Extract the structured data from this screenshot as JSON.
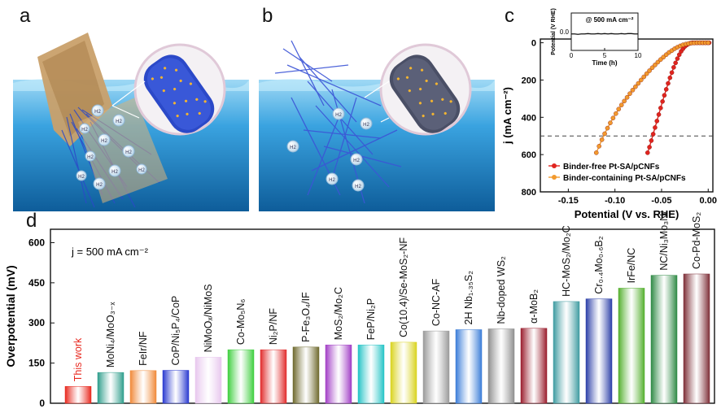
{
  "panels": {
    "a": "a",
    "b": "b",
    "c": "c",
    "d": "d"
  },
  "illustration": {
    "bubble_label": "H2"
  },
  "colors": {
    "water_top": "#7ec9ee",
    "water_bottom": "#0f6aa8",
    "fiber_blue": "#2b49c8",
    "pt_dot": "#f2b431",
    "binder_free": "#e0241f",
    "binder_containing": "#f29a2e"
  },
  "chart_data": [
    {
      "type": "line",
      "panel": "c",
      "xlabel": "Potential (V vs. RHE)",
      "ylabel": "j (mA cm⁻²)",
      "xlim": [
        -0.18,
        0.005
      ],
      "ylim": [
        800,
        -20
      ],
      "y_inverted": true,
      "xticks": [
        "-0.15",
        "-0.10",
        "-0.05",
        "0.00"
      ],
      "yticks": [
        "0",
        "200",
        "400",
        "600",
        "800"
      ],
      "reference_line": 500,
      "legend_position": "bottom-left",
      "series": [
        {
          "name": "Binder-free Pt-SA/pCNFs",
          "color": "#e0241f",
          "x": [
            -0.065,
            -0.063,
            -0.061,
            -0.059,
            -0.057,
            -0.055,
            -0.053,
            -0.051,
            -0.049,
            -0.047,
            -0.045,
            -0.043,
            -0.041,
            -0.039,
            -0.037,
            -0.035,
            -0.033,
            -0.031,
            -0.029,
            -0.027,
            -0.025,
            -0.023,
            -0.021,
            -0.019,
            -0.017,
            -0.015,
            -0.013,
            -0.011,
            -0.009,
            -0.007,
            -0.005,
            -0.003,
            -0.001,
            0.001
          ],
          "y": [
            590,
            560,
            525,
            490,
            455,
            420,
            385,
            350,
            315,
            282,
            250,
            218,
            188,
            160,
            132,
            108,
            85,
            64,
            46,
            32,
            20,
            12,
            6,
            2,
            0,
            0,
            0,
            0,
            0,
            0,
            0,
            0,
            0,
            0
          ]
        },
        {
          "name": "Binder-containing Pt-SA/pCNFs",
          "color": "#f29a2e",
          "x": [
            -0.12,
            -0.117,
            -0.114,
            -0.111,
            -0.108,
            -0.105,
            -0.102,
            -0.099,
            -0.096,
            -0.093,
            -0.09,
            -0.087,
            -0.084,
            -0.081,
            -0.078,
            -0.075,
            -0.072,
            -0.069,
            -0.066,
            -0.063,
            -0.06,
            -0.057,
            -0.054,
            -0.051,
            -0.048,
            -0.045,
            -0.042,
            -0.039,
            -0.036,
            -0.033,
            -0.03,
            -0.027,
            -0.024,
            -0.021,
            -0.018,
            -0.015,
            -0.012,
            -0.009,
            -0.006,
            -0.003,
            0.0
          ],
          "y": [
            590,
            555,
            520,
            488,
            458,
            430,
            404,
            380,
            356,
            334,
            313,
            293,
            273,
            254,
            236,
            218,
            200,
            183,
            166,
            150,
            134,
            119,
            104,
            90,
            77,
            64,
            52,
            42,
            32,
            24,
            17,
            11,
            7,
            4,
            2,
            1,
            0,
            0,
            0,
            0,
            0
          ]
        }
      ],
      "inset": {
        "type": "line",
        "xlabel": "Time (h)",
        "ylabel": "Potential (V RHE)",
        "annotation": "@ 500 mA cm⁻²",
        "xlim": [
          0,
          10
        ],
        "ylim": [
          -0.5,
          0.5
        ],
        "xticks": [
          "0",
          "5",
          "10"
        ],
        "yticks": [
          "0.0"
        ],
        "x": [
          0,
          0.5,
          1,
          1.5,
          2,
          2.5,
          3,
          3.5,
          4,
          4.5,
          5,
          5.5,
          6,
          6.5,
          7,
          7.5,
          8,
          8.5,
          9,
          9.5,
          10
        ],
        "y": [
          -0.06,
          -0.06,
          -0.07,
          -0.06,
          -0.06,
          -0.05,
          -0.06,
          -0.06,
          -0.05,
          -0.06,
          -0.05,
          -0.06,
          -0.05,
          -0.06,
          -0.06,
          -0.05,
          -0.06,
          -0.05,
          -0.05,
          -0.06,
          -0.06
        ]
      }
    },
    {
      "type": "bar",
      "panel": "d",
      "ylabel": "Overpotential (mV)",
      "annotation": "j = 500 mA cm⁻²",
      "ylim": [
        0,
        650
      ],
      "yticks": [
        "0",
        "150",
        "300",
        "450",
        "600"
      ],
      "categories": [
        "This work",
        "MoNi₄/MoO₃₋ₓ",
        "FeIr/NF",
        "CoP/Ni₅P₄/CoP",
        "NiMoOₓ/NiMoS",
        "Co-Mo₅N₆",
        "Ni₂P/NF",
        "P-Fe₃O₄/IF",
        "MoS₂/Mo₂C",
        "FeP/Ni₂P",
        "Co(10.4)/Se-MoS₂-NF",
        "Co-NC-AF",
        "2H Nb₁.₃₅S₂",
        "Nb-doped WS₂",
        "α-MoB₂",
        "HC-MoS₂/Mo₂C",
        "Cr₀.₄Mo₀.₆B₂",
        "IrFe/NC",
        "NC/Ni₃Mo₃N/NF",
        "Co-Pd-MoS₂"
      ],
      "values": [
        63,
        115,
        122,
        123,
        172,
        200,
        200,
        210,
        218,
        218,
        228,
        270,
        275,
        278,
        280,
        380,
        390,
        430,
        478,
        483
      ],
      "colors": [
        "#e8291f",
        "#2f9e8c",
        "#f08a3a",
        "#2a3ad0",
        "#e8c7ee",
        "#3fcf3f",
        "#e12d2d",
        "#6f6a2e",
        "#a23fc6",
        "#25c4c6",
        "#d9d31f",
        "#9a9a9a",
        "#3b7dd8",
        "#8f8f8f",
        "#9a1e2e",
        "#3f9ca1",
        "#2c3fa8",
        "#55b02f",
        "#2f8a45",
        "#7e2f38"
      ],
      "label_colors": [
        "#e8291f",
        "#111111",
        "#111111",
        "#111111",
        "#111111",
        "#111111",
        "#111111",
        "#111111",
        "#111111",
        "#111111",
        "#111111",
        "#111111",
        "#111111",
        "#111111",
        "#111111",
        "#111111",
        "#111111",
        "#111111",
        "#111111",
        "#111111"
      ]
    }
  ]
}
